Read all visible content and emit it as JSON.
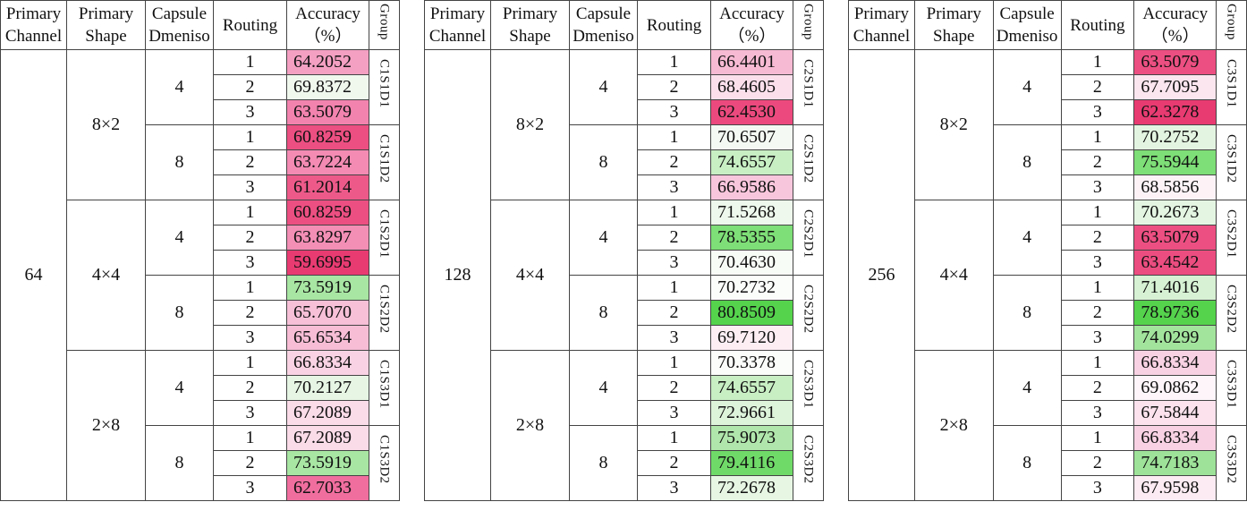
{
  "headers": {
    "channel": [
      "Primary",
      "Channel"
    ],
    "shape": [
      "Primary",
      "Shape"
    ],
    "dim": [
      "Capsule",
      "Dmeniso"
    ],
    "routing": "Routing",
    "accuracy": [
      "Accuracy",
      "（%）"
    ],
    "group": "Group"
  },
  "tables": [
    {
      "channel": "64",
      "shapes": [
        {
          "label": "8×2",
          "dims": [
            {
              "label": "4",
              "group": "C1S1D1",
              "rows": [
                {
                  "routing": "1",
                  "value": "64.2052",
                  "color": "#f4a0c2"
                },
                {
                  "routing": "2",
                  "value": "69.8372",
                  "color": "#f0f8ee"
                },
                {
                  "routing": "3",
                  "value": "63.5079",
                  "color": "#f283ae"
                }
              ]
            },
            {
              "label": "8",
              "group": "C1S1D2",
              "rows": [
                {
                  "routing": "1",
                  "value": "60.8259",
                  "color": "#ec4f82"
                },
                {
                  "routing": "2",
                  "value": "63.7224",
                  "color": "#f38bb3"
                },
                {
                  "routing": "3",
                  "value": "61.2014",
                  "color": "#ed5a8a"
                }
              ]
            }
          ]
        },
        {
          "label": "4×4",
          "dims": [
            {
              "label": "4",
              "group": "C1S2D1",
              "rows": [
                {
                  "routing": "1",
                  "value": "60.8259",
                  "color": "#ec4f82"
                },
                {
                  "routing": "2",
                  "value": "63.8297",
                  "color": "#f38eb5"
                },
                {
                  "routing": "3",
                  "value": "59.6995",
                  "color": "#e83b72"
                }
              ]
            },
            {
              "label": "8",
              "group": "C1S2D2",
              "rows": [
                {
                  "routing": "1",
                  "value": "73.5919",
                  "color": "#a8e6a3"
                },
                {
                  "routing": "2",
                  "value": "65.7070",
                  "color": "#f7c0d7"
                },
                {
                  "routing": "3",
                  "value": "65.6534",
                  "color": "#f7bdd5"
                }
              ]
            }
          ]
        },
        {
          "label": "2×8",
          "dims": [
            {
              "label": "4",
              "group": "C1S3D1",
              "rows": [
                {
                  "routing": "1",
                  "value": "66.8334",
                  "color": "#f9d3e3"
                },
                {
                  "routing": "2",
                  "value": "70.2127",
                  "color": "#e6f5e4"
                },
                {
                  "routing": "3",
                  "value": "67.2089",
                  "color": "#fadbe8"
                }
              ]
            },
            {
              "label": "8",
              "group": "C1S3D2",
              "rows": [
                {
                  "routing": "1",
                  "value": "67.2089",
                  "color": "#fadbe8"
                },
                {
                  "routing": "2",
                  "value": "73.5919",
                  "color": "#a8e6a3"
                },
                {
                  "routing": "3",
                  "value": "62.7033",
                  "color": "#f06e9e"
                }
              ]
            }
          ]
        }
      ]
    },
    {
      "channel": "128",
      "shapes": [
        {
          "label": "8×2",
          "dims": [
            {
              "label": "4",
              "group": "C2S1D1",
              "rows": [
                {
                  "routing": "1",
                  "value": "66.4401",
                  "color": "#f7bad3"
                },
                {
                  "routing": "2",
                  "value": "68.4605",
                  "color": "#fbe0ec"
                },
                {
                  "routing": "3",
                  "value": "62.4530",
                  "color": "#ec4a7e"
                }
              ]
            },
            {
              "label": "8",
              "group": "C2S1D2",
              "rows": [
                {
                  "routing": "1",
                  "value": "70.6507",
                  "color": "#f4faf3"
                },
                {
                  "routing": "2",
                  "value": "74.6557",
                  "color": "#c8eec4"
                },
                {
                  "routing": "3",
                  "value": "66.9586",
                  "color": "#f8c6dc"
                }
              ]
            }
          ]
        },
        {
          "label": "4×4",
          "dims": [
            {
              "label": "4",
              "group": "C2S2D1",
              "rows": [
                {
                  "routing": "1",
                  "value": "71.5268",
                  "color": "#eef8ec"
                },
                {
                  "routing": "2",
                  "value": "78.5355",
                  "color": "#7ede77"
                },
                {
                  "routing": "3",
                  "value": "70.4630",
                  "color": "#f8fcf7"
                }
              ]
            },
            {
              "label": "8",
              "group": "C2S2D2",
              "rows": [
                {
                  "routing": "1",
                  "value": "70.2732",
                  "color": "#fbfdfb"
                },
                {
                  "routing": "2",
                  "value": "80.8509",
                  "color": "#55d34d"
                },
                {
                  "routing": "3",
                  "value": "69.7120",
                  "color": "#fdeef4"
                }
              ]
            }
          ]
        },
        {
          "label": "2×8",
          "dims": [
            {
              "label": "4",
              "group": "C2S3D1",
              "rows": [
                {
                  "routing": "1",
                  "value": "70.3378",
                  "color": "#fafdf9"
                },
                {
                  "routing": "2",
                  "value": "74.6557",
                  "color": "#c8eec4"
                },
                {
                  "routing": "3",
                  "value": "72.9661",
                  "color": "#ddf3da"
                }
              ]
            },
            {
              "label": "8",
              "group": "C2S3D2",
              "rows": [
                {
                  "routing": "1",
                  "value": "75.9073",
                  "color": "#b0e6ab"
                },
                {
                  "routing": "2",
                  "value": "79.4116",
                  "color": "#70da69"
                },
                {
                  "routing": "3",
                  "value": "72.2678",
                  "color": "#e6f6e3"
                }
              ]
            }
          ]
        }
      ]
    },
    {
      "channel": "256",
      "shapes": [
        {
          "label": "8×2",
          "dims": [
            {
              "label": "4",
              "group": "C3S1D1",
              "rows": [
                {
                  "routing": "1",
                  "value": "63.5079",
                  "color": "#ec4f82"
                },
                {
                  "routing": "2",
                  "value": "67.7095",
                  "color": "#fbe6ef"
                },
                {
                  "routing": "3",
                  "value": "62.3278",
                  "color": "#e83b72"
                }
              ]
            },
            {
              "label": "8",
              "group": "C3S1D2",
              "rows": [
                {
                  "routing": "1",
                  "value": "70.2752",
                  "color": "#e3f5e1"
                },
                {
                  "routing": "2",
                  "value": "75.5944",
                  "color": "#7ede77"
                },
                {
                  "routing": "3",
                  "value": "68.5856",
                  "color": "#fdf3f7"
                }
              ]
            }
          ]
        },
        {
          "label": "4×4",
          "dims": [
            {
              "label": "4",
              "group": "C3S2D1",
              "rows": [
                {
                  "routing": "1",
                  "value": "70.2673",
                  "color": "#e4f6e2"
                },
                {
                  "routing": "2",
                  "value": "63.5079",
                  "color": "#ec4f82"
                },
                {
                  "routing": "3",
                  "value": "63.4542",
                  "color": "#ec4d80"
                }
              ]
            },
            {
              "label": "8",
              "group": "C3S2D2",
              "rows": [
                {
                  "routing": "1",
                  "value": "71.4016",
                  "color": "#d6f1d3"
                },
                {
                  "routing": "2",
                  "value": "78.9736",
                  "color": "#55d34d"
                },
                {
                  "routing": "3",
                  "value": "74.0299",
                  "color": "#a3e49d"
                }
              ]
            }
          ]
        },
        {
          "label": "2×8",
          "dims": [
            {
              "label": "4",
              "group": "C3S3D1",
              "rows": [
                {
                  "routing": "1",
                  "value": "66.8334",
                  "color": "#f8d2e3"
                },
                {
                  "routing": "2",
                  "value": "69.0862",
                  "color": "#fdf5f9"
                },
                {
                  "routing": "3",
                  "value": "67.5844",
                  "color": "#fbe2ed"
                }
              ]
            },
            {
              "label": "8",
              "group": "C3S3D2",
              "rows": [
                {
                  "routing": "1",
                  "value": "66.8334",
                  "color": "#f8d2e3"
                },
                {
                  "routing": "2",
                  "value": "74.7183",
                  "color": "#9ee299"
                },
                {
                  "routing": "3",
                  "value": "67.9598",
                  "color": "#fcebf2"
                }
              ]
            }
          ]
        }
      ]
    }
  ]
}
